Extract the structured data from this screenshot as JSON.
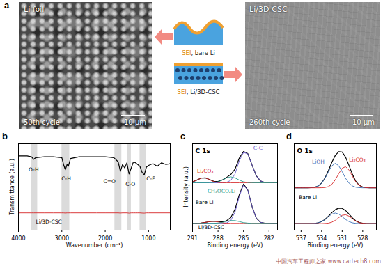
{
  "panel_a": {
    "panel_label": "a",
    "left_image": {
      "sample": "Li foil",
      "cycle": "50th cycle",
      "scale_bar": "10 μm"
    },
    "right_image": {
      "sample": "Li/3D-CSC",
      "cycle": "260th cycle",
      "scale_bar": "10 μm"
    },
    "schematic": [
      {
        "layer": "SEI",
        "text": ", bare Li"
      },
      {
        "layer": "SEI",
        "text": ", Li/3D-CSC"
      }
    ]
  },
  "chart_data": [
    {
      "panel_label": "b",
      "type": "line",
      "xlabel": "Wavenumber (cm⁻¹)",
      "ylabel": "Transmittance (a.u.)",
      "xlim": [
        4000,
        500
      ],
      "ylim": [
        0,
        10
      ],
      "xticks": [
        4000,
        3000,
        2000,
        1000
      ],
      "tick_labels": "x",
      "grid": false,
      "bands": [
        [
          3700,
          3560
        ],
        [
          3000,
          2820
        ],
        [
          1780,
          1620
        ],
        [
          1480,
          1400
        ],
        [
          1200,
          1050
        ]
      ],
      "x": [
        4000,
        3800,
        3700,
        3650,
        3600,
        3400,
        3200,
        3000,
        2960,
        2920,
        2880,
        2850,
        2800,
        2600,
        2400,
        2200,
        2000,
        1800,
        1700,
        1650,
        1600,
        1550,
        1500,
        1450,
        1400,
        1350,
        1300,
        1250,
        1200,
        1150,
        1100,
        1050,
        1000,
        900,
        800,
        700,
        600,
        500
      ],
      "series": [
        {
          "color": "#000000",
          "values": [
            8.6,
            8.6,
            8.5,
            8.2,
            8.4,
            8.5,
            8.5,
            8.4,
            7.6,
            7.0,
            7.6,
            7.4,
            8.3,
            8.5,
            8.5,
            8.5,
            8.5,
            8.4,
            7.9,
            6.8,
            7.6,
            7.2,
            7.8,
            6.5,
            7.2,
            7.9,
            7.8,
            7.6,
            7.4,
            6.7,
            6.4,
            7.3,
            7.5,
            7.7,
            7.4,
            7.8,
            7.6,
            7.7
          ]
        },
        {
          "color": "#d62728",
          "values": [
            2.0,
            2.0,
            2.0,
            2.0,
            2.0,
            2.0,
            2.0,
            2.0,
            2.0,
            1.98,
            2.0,
            2.0,
            2.0,
            2.0,
            2.0,
            2.0,
            2.0,
            2.0,
            2.0,
            1.98,
            2.0,
            2.0,
            2.0,
            1.97,
            2.0,
            2.0,
            2.0,
            2.0,
            2.0,
            1.98,
            1.97,
            2.0,
            2.0,
            2.0,
            2.0,
            2.0,
            2.0,
            2.0
          ]
        }
      ],
      "annotations": [
        {
          "text": "O-H",
          "x": 3650,
          "y": 7.0,
          "color": "#000000"
        },
        {
          "text": "C-H",
          "x": 2900,
          "y": 6.0,
          "color": "#000000"
        },
        {
          "text": "C=O",
          "x": 1900,
          "y": 5.6,
          "color": "#000000"
        },
        {
          "text": "C-O",
          "x": 1420,
          "y": 5.3,
          "color": "#000000"
        },
        {
          "text": "C-F",
          "x": 950,
          "y": 6.0,
          "color": "#000000"
        },
        {
          "text": "Li/3D-CSC",
          "x": 3300,
          "y": 1.0,
          "color": "#000000"
        }
      ]
    },
    {
      "panel_label": "c",
      "type": "line",
      "title": "C 1s",
      "xlabel": "Binding energy (eV)",
      "ylabel": "Intensity (a.u.)",
      "xlim": [
        291,
        281
      ],
      "ylim": [
        0,
        10.2
      ],
      "xticks": [
        291,
        288,
        285,
        282
      ],
      "tick_labels": "x",
      "grid": false,
      "x": [
        291,
        290.5,
        290,
        289.5,
        289,
        288.5,
        288,
        287.5,
        287,
        286.5,
        286,
        285.5,
        285,
        284.5,
        284,
        283.5,
        283,
        282.5,
        282,
        281.5,
        281
      ],
      "series": [
        {
          "color": "#000000",
          "values": [
            5.71,
            5.91,
            6.15,
            6.18,
            5.98,
            5.77,
            5.75,
            5.93,
            6.22,
            6.58,
            7.2,
            8.51,
            9.29,
            9.05,
            7.7,
            6.43,
            5.81,
            5.63,
            5.6,
            5.6,
            5.6
          ]
        },
        {
          "color": "#6a5acd",
          "values": [
            5.6,
            5.6,
            5.6,
            5.6,
            5.6,
            5.6,
            5.6,
            5.61,
            5.65,
            5.88,
            6.63,
            8.19,
            9.17,
            9.02,
            7.69,
            6.43,
            5.81,
            5.63,
            5.6,
            5.6,
            5.6
          ]
        },
        {
          "color": "#d62728",
          "values": [
            5.71,
            5.91,
            6.15,
            6.18,
            5.97,
            5.74,
            5.63,
            5.6,
            5.6,
            5.6,
            5.6,
            5.6,
            5.6,
            5.6,
            5.6,
            5.6,
            5.6,
            5.6,
            5.6,
            5.6,
            5.6
          ]
        },
        {
          "color": "#2a9d8f",
          "values": [
            5.6,
            5.6,
            5.6,
            5.6,
            5.61,
            5.63,
            5.72,
            5.92,
            6.17,
            6.3,
            6.17,
            5.92,
            5.72,
            5.63,
            5.61,
            5.6,
            5.6,
            5.6,
            5.6,
            5.6,
            5.6
          ]
        },
        {
          "color": "#000000",
          "values": [
            0.8,
            0.81,
            0.83,
            0.91,
            1.01,
            1.06,
            1.01,
            0.98,
            1.11,
            1.48,
            2.46,
            4.18,
            5.44,
            4.74,
            2.82,
            1.42,
            0.92,
            0.81,
            0.8,
            0.8,
            0.8
          ]
        },
        {
          "color": "#6a5acd",
          "values": [
            0.8,
            0.8,
            0.8,
            0.8,
            0.8,
            0.8,
            0.8,
            0.8,
            0.85,
            1.14,
            2.13,
            3.97,
            5.35,
            4.71,
            2.82,
            1.42,
            0.92,
            0.81,
            0.8,
            0.8,
            0.8
          ]
        },
        {
          "color": "#d62728",
          "values": [
            0.8,
            0.81,
            0.83,
            0.91,
            1.01,
            1.05,
            0.97,
            0.87,
            0.82,
            0.8,
            0.8,
            0.8,
            0.8,
            0.8,
            0.8,
            0.8,
            0.8,
            0.8,
            0.8,
            0.8,
            0.8
          ]
        },
        {
          "color": "#2a9d8f",
          "values": [
            0.8,
            0.8,
            0.8,
            0.8,
            0.8,
            0.81,
            0.84,
            0.91,
            1.04,
            1.14,
            1.13,
            1.01,
            0.89,
            0.83,
            0.8,
            0.8,
            0.8,
            0.8,
            0.8,
            0.8,
            0.8
          ]
        }
      ],
      "annotations": [
        {
          "text": "Li₂CO₃",
          "x": 289.5,
          "y": 7.0,
          "color": "#d62728"
        },
        {
          "text": "C-C",
          "x": 283.3,
          "y": 9.7,
          "color": "#6a5acd"
        },
        {
          "text": "CH₃OCO₂Li",
          "x": 287.6,
          "y": 4.6,
          "color": "#2a9d8f"
        },
        {
          "text": "Bare Li",
          "x": 289.6,
          "y": 3.3,
          "color": "#000000"
        },
        {
          "text": "Li/3D-CSC",
          "x": 288.8,
          "y": 0.35,
          "color": "#000000"
        }
      ]
    },
    {
      "panel_label": "d",
      "type": "line",
      "title": "O 1s",
      "xlabel": "Binding energy (eV)",
      "xlim": [
        538,
        526
      ],
      "ylim": [
        0,
        10.6
      ],
      "xticks": [
        537,
        534,
        531,
        528
      ],
      "tick_labels": "x",
      "grid": false,
      "x": [
        538,
        537.5,
        537,
        536.5,
        536,
        535.5,
        535,
        534.5,
        534,
        533.5,
        533,
        532.5,
        532,
        531.5,
        531,
        530.5,
        530,
        529.5,
        529,
        528.5,
        528,
        527.5,
        527,
        526.5,
        526
      ],
      "series": [
        {
          "color": "#000000",
          "values": [
            5.2,
            5.2,
            5.2,
            5.2,
            5.2,
            5.22,
            5.27,
            5.43,
            5.78,
            6.41,
            7.33,
            8.33,
            9.18,
            9.63,
            9.58,
            8.96,
            7.94,
            6.85,
            5.99,
            5.51,
            5.29,
            5.22,
            5.2,
            5.2,
            5.2
          ]
        },
        {
          "color": "#3b6fb6",
          "values": [
            5.2,
            5.2,
            5.2,
            5.2,
            5.2,
            5.22,
            5.27,
            5.43,
            5.77,
            6.37,
            7.18,
            7.9,
            8.2,
            7.9,
            7.18,
            6.37,
            5.77,
            5.43,
            5.27,
            5.22,
            5.2,
            5.2,
            5.2,
            5.2,
            5.2
          ]
        },
        {
          "color": "#d62728",
          "values": [
            5.2,
            5.2,
            5.2,
            5.2,
            5.2,
            5.2,
            5.2,
            5.2,
            5.21,
            5.24,
            5.35,
            5.63,
            6.18,
            6.93,
            7.6,
            7.79,
            7.37,
            6.62,
            5.92,
            5.49,
            5.29,
            5.22,
            5.2,
            5.2,
            5.2
          ]
        },
        {
          "color": "#000000",
          "values": [
            0.8,
            0.8,
            0.8,
            0.8,
            0.8,
            0.81,
            0.83,
            0.9,
            1.05,
            1.33,
            1.72,
            2.15,
            2.51,
            2.7,
            2.68,
            2.4,
            1.97,
            1.5,
            1.14,
            0.93,
            0.84,
            0.81,
            0.8,
            0.8,
            0.8
          ]
        },
        {
          "color": "#3b6fb6",
          "values": [
            0.8,
            0.8,
            0.8,
            0.8,
            0.8,
            0.81,
            0.83,
            0.9,
            1.05,
            1.31,
            1.66,
            1.97,
            2.1,
            1.97,
            1.66,
            1.31,
            1.05,
            0.9,
            0.83,
            0.81,
            0.8,
            0.8,
            0.8,
            0.8,
            0.8
          ]
        },
        {
          "color": "#d62728",
          "values": [
            0.8,
            0.8,
            0.8,
            0.8,
            0.8,
            0.8,
            0.8,
            0.8,
            0.8,
            0.82,
            0.86,
            0.98,
            1.21,
            1.53,
            1.82,
            1.89,
            1.72,
            1.4,
            1.11,
            0.92,
            0.84,
            0.81,
            0.8,
            0.8,
            0.8
          ]
        }
      ],
      "annotations": [
        {
          "text": "LiOH",
          "x": 534.5,
          "y": 8.4,
          "color": "#3b6fb6"
        },
        {
          "text": "Li₂CO₃",
          "x": 528.8,
          "y": 8.6,
          "color": "#d62728"
        },
        {
          "text": "Bare Li",
          "x": 536,
          "y": 4.0,
          "color": "#000000"
        }
      ]
    }
  ],
  "watermark": [
    "中国汽车工程师之家",
    "www.cartech8.com"
  ]
}
